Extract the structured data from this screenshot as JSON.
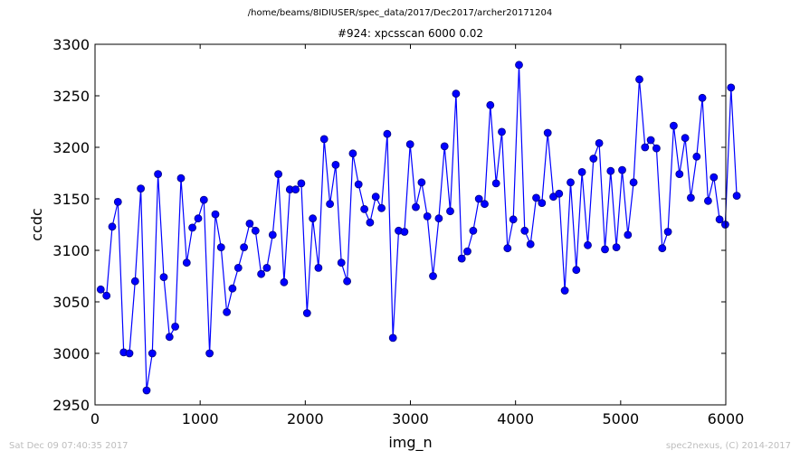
{
  "figure": {
    "suptitle": "/home/beams/8IDIUSER/spec_data/2017/Dec2017/archer20171204",
    "footer_left": "Sat Dec 09 07:40:35 2017",
    "footer_right": "spec2nexus, (C) 2014-2017"
  },
  "chart_data": {
    "type": "line",
    "title": "#924: xpcsscan 6000 0.02",
    "xlabel": "img_n",
    "ylabel": "ccdc",
    "xlim": [
      0,
      6000
    ],
    "ylim": [
      2950,
      3300
    ],
    "xticks": [
      0,
      1000,
      2000,
      3000,
      4000,
      5000,
      6000
    ],
    "yticks": [
      2950,
      3000,
      3050,
      3100,
      3150,
      3200,
      3250,
      3300
    ],
    "grid": false,
    "legend": "none",
    "colors": {
      "line": "#0000ff",
      "marker": "#0000ff",
      "marker_edge": "#000080"
    },
    "marker": "circle",
    "x_step": 54.5,
    "series": [
      {
        "values": [
          3062,
          3056,
          3123,
          3147,
          3001,
          3000,
          3070,
          3160,
          2964,
          3000,
          3174,
          3074,
          3016,
          3026,
          3170,
          3088,
          3122,
          3131,
          3149,
          3000,
          3135,
          3103,
          3040,
          3063,
          3083,
          3103,
          3126,
          3119,
          3077,
          3083,
          3115,
          3174,
          3069,
          3159,
          3159,
          3165,
          3039,
          3131,
          3083,
          3208,
          3145,
          3183,
          3088,
          3070,
          3194,
          3164,
          3140,
          3127,
          3152,
          3141,
          3213,
          3015,
          3119,
          3118,
          3203,
          3142,
          3166,
          3133,
          3075,
          3131,
          3201,
          3138,
          3252,
          3092,
          3099,
          3119,
          3150,
          3145,
          3241,
          3165,
          3215,
          3102,
          3130,
          3280,
          3119,
          3106,
          3151,
          3146,
          3214,
          3152,
          3155,
          3061,
          3166,
          3081,
          3176,
          3105,
          3189,
          3204,
          3101,
          3177,
          3103,
          3178,
          3115,
          3166,
          3266,
          3200,
          3207,
          3199,
          3102,
          3118,
          3221,
          3174,
          3209,
          3151,
          3191,
          3248,
          3148,
          3171,
          3130,
          3125,
          3258,
          3153
        ]
      }
    ]
  }
}
